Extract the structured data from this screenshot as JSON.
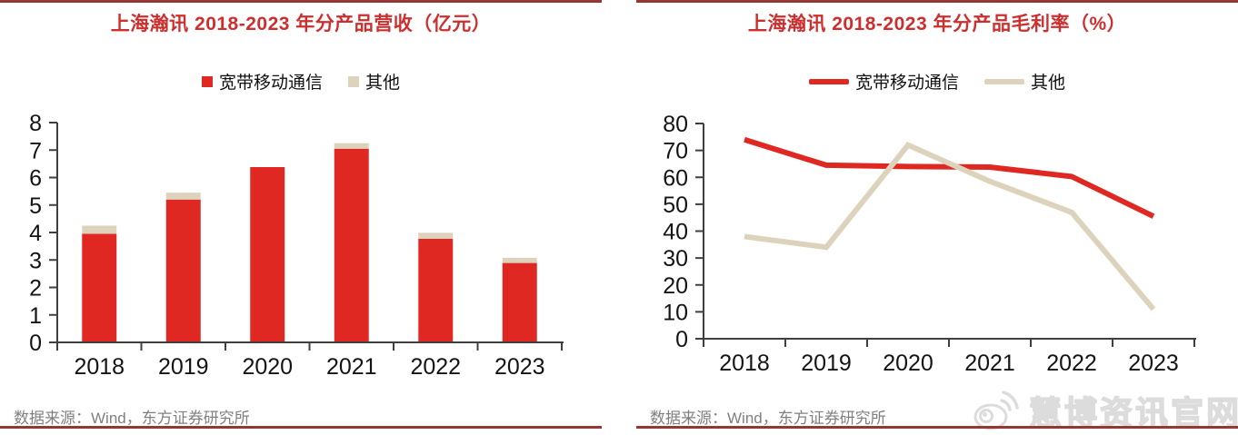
{
  "figure": {
    "panels": [
      {
        "source_note": "数据来源：Wind，东方证券研究所"
      },
      {
        "source_note": "数据来源：Wind，东方证券研究所"
      }
    ],
    "watermark": {
      "text": "慧博资讯官网",
      "icon": "weibo-eye-icon"
    }
  },
  "colors": {
    "title_red": "#cc2f2e",
    "rule_dark_red": "#953735",
    "series_red": "#e02822",
    "series_beige": "#ddd3bd",
    "source_gray": "#808080",
    "axis": "#3f3f3f",
    "tick_label": "#141414",
    "watermark_gray": "#dcdcdc"
  },
  "chart_data": [
    {
      "type": "bar",
      "stacked": true,
      "title": "上海瀚讯 2018-2023 年分产品营收（亿元）",
      "categories": [
        "2018",
        "2019",
        "2020",
        "2021",
        "2022",
        "2023"
      ],
      "series": [
        {
          "name": "宽带移动通信",
          "color": "#e02822",
          "values": [
            3.95,
            5.2,
            6.38,
            7.05,
            3.77,
            2.89
          ]
        },
        {
          "name": "其他",
          "color": "#ddd3bd",
          "values": [
            0.3,
            0.25,
            0,
            0.2,
            0.22,
            0.19
          ]
        }
      ],
      "xlabel": "",
      "ylabel": "",
      "ylim": [
        0,
        8
      ],
      "ytick_step": 1,
      "grid": false,
      "legend_position": "top"
    },
    {
      "type": "line",
      "title": "上海瀚讯 2018-2023 年分产品毛利率（%）",
      "categories": [
        "2018",
        "2019",
        "2020",
        "2021",
        "2022",
        "2023"
      ],
      "series": [
        {
          "name": "宽带移动通信",
          "color": "#e02822",
          "values": [
            74,
            64.5,
            64,
            63.8,
            60.3,
            45.5
          ]
        },
        {
          "name": "其他",
          "color": "#ddd3bd",
          "values": [
            38,
            34,
            72,
            58.5,
            47,
            11
          ]
        }
      ],
      "xlabel": "",
      "ylabel": "",
      "ylim": [
        0,
        80
      ],
      "ytick_step": 10,
      "grid": false,
      "legend_position": "top"
    }
  ]
}
